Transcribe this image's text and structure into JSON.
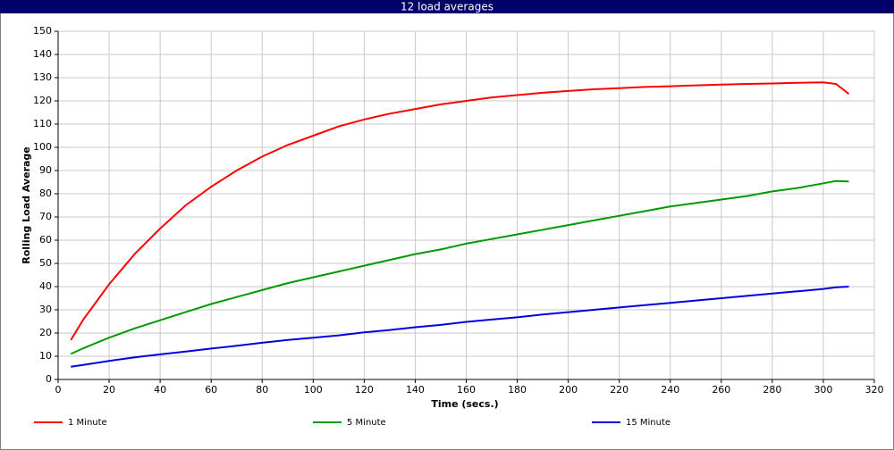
{
  "chart_data": {
    "type": "line",
    "title": "12 load averages",
    "x_label": "Time (secs.)",
    "y_label": "Rolling Load Average",
    "x": [
      5,
      10,
      20,
      30,
      40,
      50,
      60,
      70,
      80,
      90,
      100,
      110,
      120,
      130,
      140,
      150,
      160,
      170,
      180,
      190,
      200,
      210,
      220,
      230,
      240,
      250,
      260,
      270,
      280,
      290,
      300,
      305,
      310
    ],
    "series": [
      {
        "name": "1 Minute",
        "color": "#ff0000",
        "values": [
          17,
          26,
          41,
          54,
          65,
          75,
          83,
          90,
          96,
          101,
          105,
          109,
          112,
          114.5,
          116.5,
          118.5,
          120,
          121.5,
          122.5,
          123.5,
          124.3,
          125,
          125.5,
          126,
          126.3,
          126.7,
          127,
          127.3,
          127.5,
          127.8,
          128,
          127.3,
          123
        ]
      },
      {
        "name": "5 Minute",
        "color": "#009900",
        "values": [
          11,
          13.5,
          18,
          22,
          25.5,
          29,
          32.5,
          35.5,
          38.5,
          41.5,
          44,
          46.5,
          49,
          51.5,
          54,
          56,
          58.5,
          60.5,
          62.5,
          64.5,
          66.5,
          68.5,
          70.5,
          72.5,
          74.5,
          76,
          77.5,
          79,
          81,
          82.5,
          84.5,
          85.5,
          85.3
        ]
      },
      {
        "name": "15 Minute",
        "color": "#0000dd",
        "values": [
          5.5,
          6.3,
          8,
          9.5,
          10.8,
          12,
          13.3,
          14.5,
          15.8,
          17,
          18,
          19,
          20.3,
          21.3,
          22.5,
          23.5,
          24.8,
          25.8,
          26.8,
          28,
          29,
          30,
          31,
          32,
          33,
          34,
          35,
          36,
          37,
          38,
          39,
          39.7,
          40
        ]
      }
    ],
    "xlim": [
      0,
      320
    ],
    "xticks": [
      0,
      20,
      40,
      60,
      80,
      100,
      120,
      140,
      160,
      180,
      200,
      220,
      240,
      260,
      280,
      300,
      320
    ],
    "ylim": [
      0,
      150
    ],
    "yticks": [
      0,
      10,
      20,
      30,
      40,
      50,
      60,
      70,
      80,
      90,
      100,
      110,
      120,
      130,
      140,
      150
    ],
    "grid": true
  }
}
